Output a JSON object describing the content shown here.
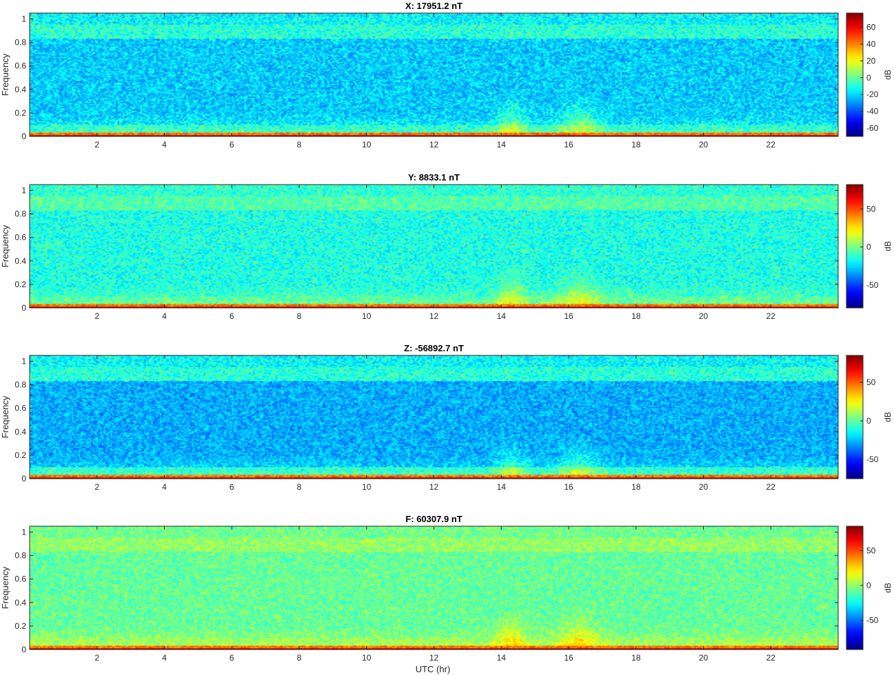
{
  "figure": {
    "xlabel": "UTC (hr)"
  },
  "chart_data": [
    {
      "type": "heatmap",
      "title": "X: 17951.2 nT",
      "xlabel": "",
      "ylabel": "Frequency",
      "xlim": [
        0,
        24
      ],
      "ylim": [
        0,
        1.05
      ],
      "xticks": [
        2,
        4,
        6,
        8,
        10,
        12,
        14,
        16,
        18,
        20,
        22
      ],
      "yticks": [
        0,
        0.2,
        0.4,
        0.6,
        0.8,
        1
      ],
      "colorbar": {
        "label": "dB",
        "range": [
          -70,
          77
        ],
        "ticks": [
          -60,
          -40,
          -20,
          0,
          20,
          40,
          60
        ],
        "colormap": "jet"
      },
      "background_db": -15,
      "midband_db": -22
    },
    {
      "type": "heatmap",
      "title": "Y: 8833.1 nT",
      "xlabel": "",
      "ylabel": "Frequency",
      "xlim": [
        0,
        24
      ],
      "ylim": [
        0,
        1.05
      ],
      "xticks": [
        2,
        4,
        6,
        8,
        10,
        12,
        14,
        16,
        18,
        20,
        22
      ],
      "yticks": [
        0,
        0.2,
        0.4,
        0.6,
        0.8,
        1
      ],
      "colorbar": {
        "label": "dB",
        "range": [
          -80,
          82
        ],
        "ticks": [
          -50,
          0,
          50
        ],
        "colormap": "jet"
      },
      "background_db": -12,
      "midband_db": -15
    },
    {
      "type": "heatmap",
      "title": "Z: -56892.7 nT",
      "xlabel": "",
      "ylabel": "Frequency",
      "xlim": [
        0,
        24
      ],
      "ylim": [
        0,
        1.05
      ],
      "xticks": [
        2,
        4,
        6,
        8,
        10,
        12,
        14,
        16,
        18,
        20,
        22
      ],
      "yticks": [
        0,
        0.2,
        0.4,
        0.6,
        0.8,
        1
      ],
      "colorbar": {
        "label": "dB",
        "range": [
          -75,
          85
        ],
        "ticks": [
          -50,
          0,
          50
        ],
        "colormap": "jet"
      },
      "background_db": -15,
      "midband_db": -28
    },
    {
      "type": "heatmap",
      "title": "F: 60307.9 nT",
      "xlabel": "UTC (hr)",
      "ylabel": "Frequency",
      "xlim": [
        0,
        24
      ],
      "ylim": [
        0,
        1.05
      ],
      "xticks": [
        2,
        4,
        6,
        8,
        10,
        12,
        14,
        16,
        18,
        20,
        22
      ],
      "yticks": [
        0,
        0.2,
        0.4,
        0.6,
        0.8,
        1
      ],
      "colorbar": {
        "label": "dB",
        "range": [
          -92,
          85
        ],
        "ticks": [
          -50,
          0,
          50
        ],
        "colormap": "jet"
      },
      "background_db": -6,
      "midband_db": -8
    }
  ]
}
